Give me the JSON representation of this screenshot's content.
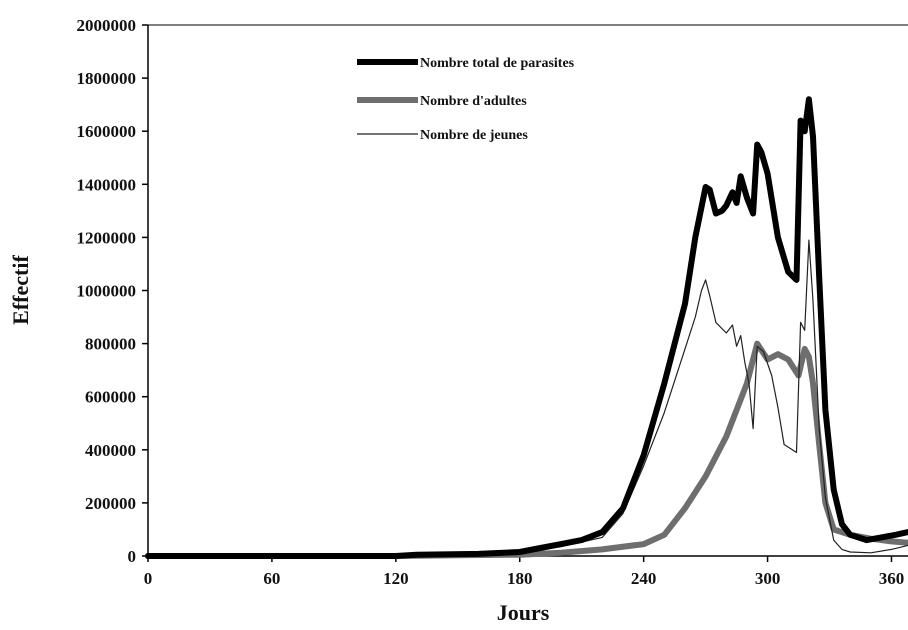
{
  "chart_data": {
    "type": "line",
    "title": "",
    "xlabel": "Jours",
    "ylabel": "Effectif",
    "xlim": [
      0,
      368
    ],
    "ylim": [
      0,
      2000000
    ],
    "xticks": [
      0,
      60,
      120,
      180,
      240,
      300,
      360
    ],
    "xtick_labels": [
      "0",
      "60",
      "120",
      "180",
      "240",
      "300",
      "360"
    ],
    "yticks": [
      0,
      200000,
      400000,
      600000,
      800000,
      1000000,
      1200000,
      1400000,
      1600000,
      1800000,
      2000000
    ],
    "ytick_labels": [
      "0",
      "200000",
      "400000",
      "600000",
      "800000",
      "1000000",
      "1200000",
      "1400000",
      "1600000",
      "1800000",
      "2000000"
    ],
    "grid": false,
    "legend_position": "top-center",
    "series": [
      {
        "name": "Nombre total de parasites",
        "color": "#000000",
        "points": [
          [
            0,
            0
          ],
          [
            120,
            0
          ],
          [
            130,
            5000
          ],
          [
            160,
            8000
          ],
          [
            180,
            15000
          ],
          [
            190,
            30000
          ],
          [
            200,
            45000
          ],
          [
            210,
            60000
          ],
          [
            220,
            90000
          ],
          [
            230,
            180000
          ],
          [
            240,
            380000
          ],
          [
            250,
            650000
          ],
          [
            260,
            950000
          ],
          [
            265,
            1200000
          ],
          [
            270,
            1390000
          ],
          [
            272,
            1380000
          ],
          [
            275,
            1290000
          ],
          [
            278,
            1300000
          ],
          [
            280,
            1320000
          ],
          [
            283,
            1370000
          ],
          [
            285,
            1330000
          ],
          [
            287,
            1430000
          ],
          [
            290,
            1350000
          ],
          [
            293,
            1290000
          ],
          [
            295,
            1550000
          ],
          [
            297,
            1520000
          ],
          [
            300,
            1440000
          ],
          [
            305,
            1200000
          ],
          [
            310,
            1070000
          ],
          [
            314,
            1040000
          ],
          [
            316,
            1640000
          ],
          [
            318,
            1600000
          ],
          [
            320,
            1720000
          ],
          [
            322,
            1580000
          ],
          [
            325,
            1050000
          ],
          [
            328,
            550000
          ],
          [
            332,
            250000
          ],
          [
            336,
            120000
          ],
          [
            340,
            80000
          ],
          [
            348,
            60000
          ],
          [
            355,
            70000
          ],
          [
            362,
            80000
          ],
          [
            368,
            90000
          ]
        ]
      },
      {
        "name": "Nombre d'adultes",
        "color": "#6e6e6e",
        "points": [
          [
            0,
            0
          ],
          [
            120,
            0
          ],
          [
            150,
            3000
          ],
          [
            180,
            5000
          ],
          [
            200,
            12000
          ],
          [
            220,
            25000
          ],
          [
            240,
            45000
          ],
          [
            250,
            80000
          ],
          [
            260,
            180000
          ],
          [
            270,
            300000
          ],
          [
            280,
            450000
          ],
          [
            290,
            650000
          ],
          [
            295,
            800000
          ],
          [
            300,
            740000
          ],
          [
            305,
            760000
          ],
          [
            310,
            740000
          ],
          [
            315,
            680000
          ],
          [
            318,
            780000
          ],
          [
            320,
            750000
          ],
          [
            322,
            650000
          ],
          [
            325,
            420000
          ],
          [
            328,
            200000
          ],
          [
            332,
            100000
          ],
          [
            340,
            80000
          ],
          [
            350,
            65000
          ],
          [
            360,
            55000
          ],
          [
            368,
            50000
          ]
        ]
      },
      {
        "name": "Nombre de jeunes",
        "color": "#222222",
        "points": [
          [
            0,
            0
          ],
          [
            120,
            0
          ],
          [
            150,
            5000
          ],
          [
            180,
            10000
          ],
          [
            200,
            35000
          ],
          [
            220,
            70000
          ],
          [
            230,
            160000
          ],
          [
            240,
            340000
          ],
          [
            250,
            540000
          ],
          [
            260,
            780000
          ],
          [
            265,
            900000
          ],
          [
            268,
            1000000
          ],
          [
            270,
            1040000
          ],
          [
            272,
            980000
          ],
          [
            275,
            880000
          ],
          [
            280,
            840000
          ],
          [
            283,
            870000
          ],
          [
            285,
            790000
          ],
          [
            287,
            830000
          ],
          [
            289,
            730000
          ],
          [
            291,
            650000
          ],
          [
            293,
            480000
          ],
          [
            295,
            790000
          ],
          [
            298,
            770000
          ],
          [
            302,
            680000
          ],
          [
            305,
            560000
          ],
          [
            308,
            420000
          ],
          [
            312,
            400000
          ],
          [
            314,
            390000
          ],
          [
            316,
            880000
          ],
          [
            318,
            850000
          ],
          [
            320,
            1190000
          ],
          [
            322,
            960000
          ],
          [
            325,
            480000
          ],
          [
            328,
            220000
          ],
          [
            332,
            60000
          ],
          [
            336,
            25000
          ],
          [
            340,
            15000
          ],
          [
            350,
            12000
          ],
          [
            360,
            25000
          ],
          [
            368,
            40000
          ]
        ]
      }
    ]
  }
}
